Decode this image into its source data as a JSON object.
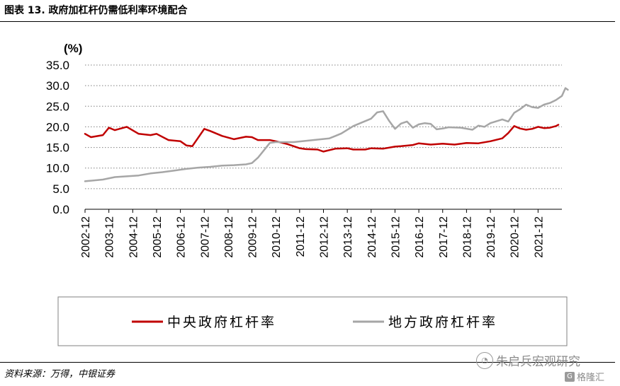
{
  "figure_title": "图表 13. 政府加杠杆仍需低利率环境配合",
  "source_note": "资料来源：万得，中银证券",
  "watermark": {
    "text": "朱启兵宏观研究",
    "icon": "wechat-circle-icon",
    "brand": "格隆汇",
    "brand_icon": "g-box-icon"
  },
  "chart_data": {
    "type": "line",
    "title": "",
    "ylabel": "(%)",
    "xlabel": "",
    "ylim": [
      0,
      35
    ],
    "yticks": [
      "0.0",
      "5.0",
      "10.0",
      "15.0",
      "20.0",
      "25.0",
      "30.0",
      "35.0"
    ],
    "xlim": [
      2002.75,
      2022.75
    ],
    "xticks": [
      "2002-12",
      "2003-12",
      "2004-12",
      "2005-12",
      "2006-12",
      "2007-12",
      "2008-12",
      "2009-12",
      "2010-12",
      "2011-12",
      "2012-12",
      "2013-12",
      "2014-12",
      "2015-12",
      "2016-12",
      "2017-12",
      "2018-12",
      "2019-12",
      "2020-12",
      "2021-12"
    ],
    "grid": "horizontal-dotted",
    "legend_position": "bottom",
    "series": [
      {
        "name": "中央政府杠杆率",
        "color": "#c00000",
        "points": [
          [
            2002.75,
            18.3
          ],
          [
            2003.0,
            17.5
          ],
          [
            2003.5,
            18.0
          ],
          [
            2003.75,
            19.8
          ],
          [
            2004.0,
            19.2
          ],
          [
            2004.5,
            20.0
          ],
          [
            2005.0,
            18.3
          ],
          [
            2005.5,
            18.0
          ],
          [
            2005.75,
            18.3
          ],
          [
            2006.25,
            16.8
          ],
          [
            2006.75,
            16.5
          ],
          [
            2007.0,
            15.5
          ],
          [
            2007.25,
            15.3
          ],
          [
            2007.75,
            19.5
          ],
          [
            2008.0,
            19.0
          ],
          [
            2008.5,
            17.8
          ],
          [
            2009.0,
            17.0
          ],
          [
            2009.5,
            17.6
          ],
          [
            2009.75,
            17.5
          ],
          [
            2010.0,
            16.8
          ],
          [
            2010.5,
            16.8
          ],
          [
            2010.75,
            16.5
          ],
          [
            2011.25,
            15.8
          ],
          [
            2011.75,
            14.8
          ],
          [
            2012.0,
            14.6
          ],
          [
            2012.5,
            14.5
          ],
          [
            2012.75,
            14.0
          ],
          [
            2013.25,
            14.7
          ],
          [
            2013.75,
            14.8
          ],
          [
            2014.0,
            14.5
          ],
          [
            2014.5,
            14.5
          ],
          [
            2014.75,
            14.8
          ],
          [
            2015.25,
            14.7
          ],
          [
            2015.75,
            15.2
          ],
          [
            2016.0,
            15.3
          ],
          [
            2016.5,
            15.6
          ],
          [
            2016.75,
            16.0
          ],
          [
            2017.25,
            15.7
          ],
          [
            2017.75,
            15.9
          ],
          [
            2018.25,
            15.7
          ],
          [
            2018.75,
            16.1
          ],
          [
            2019.25,
            16.0
          ],
          [
            2019.75,
            16.5
          ],
          [
            2020.25,
            17.2
          ],
          [
            2020.5,
            18.5
          ],
          [
            2020.75,
            20.2
          ],
          [
            2021.0,
            19.6
          ],
          [
            2021.25,
            19.3
          ],
          [
            2021.5,
            19.5
          ],
          [
            2021.75,
            20.0
          ],
          [
            2022.0,
            19.7
          ],
          [
            2022.25,
            19.8
          ],
          [
            2022.5,
            20.2
          ],
          [
            2022.6,
            20.5
          ]
        ]
      },
      {
        "name": "地方政府杠杆率",
        "color": "#a6a6a6",
        "points": [
          [
            2002.75,
            6.8
          ],
          [
            2003.5,
            7.2
          ],
          [
            2004.0,
            7.8
          ],
          [
            2004.5,
            8.0
          ],
          [
            2005.0,
            8.2
          ],
          [
            2005.5,
            8.7
          ],
          [
            2006.0,
            9.0
          ],
          [
            2006.5,
            9.4
          ],
          [
            2007.0,
            9.8
          ],
          [
            2007.5,
            10.1
          ],
          [
            2008.0,
            10.3
          ],
          [
            2008.5,
            10.6
          ],
          [
            2009.0,
            10.7
          ],
          [
            2009.5,
            10.9
          ],
          [
            2009.75,
            11.2
          ],
          [
            2010.0,
            12.5
          ],
          [
            2010.25,
            14.3
          ],
          [
            2010.5,
            16.1
          ],
          [
            2010.75,
            16.3
          ],
          [
            2011.0,
            16.3
          ],
          [
            2011.5,
            16.3
          ],
          [
            2012.0,
            16.6
          ],
          [
            2012.5,
            16.9
          ],
          [
            2013.0,
            17.2
          ],
          [
            2013.25,
            17.8
          ],
          [
            2013.5,
            18.4
          ],
          [
            2014.0,
            20.2
          ],
          [
            2014.25,
            20.8
          ],
          [
            2014.5,
            21.4
          ],
          [
            2014.75,
            22.0
          ],
          [
            2015.0,
            23.5
          ],
          [
            2015.25,
            23.8
          ],
          [
            2015.5,
            21.5
          ],
          [
            2015.75,
            19.5
          ],
          [
            2016.0,
            20.8
          ],
          [
            2016.25,
            21.3
          ],
          [
            2016.5,
            19.8
          ],
          [
            2016.75,
            20.6
          ],
          [
            2017.0,
            20.9
          ],
          [
            2017.25,
            20.7
          ],
          [
            2017.5,
            19.4
          ],
          [
            2017.75,
            19.6
          ],
          [
            2018.0,
            19.9
          ],
          [
            2018.5,
            19.8
          ],
          [
            2019.0,
            19.3
          ],
          [
            2019.25,
            20.3
          ],
          [
            2019.5,
            20.0
          ],
          [
            2019.75,
            20.9
          ],
          [
            2020.25,
            21.8
          ],
          [
            2020.5,
            21.3
          ],
          [
            2020.75,
            23.4
          ],
          [
            2021.0,
            24.3
          ],
          [
            2021.25,
            25.4
          ],
          [
            2021.5,
            24.8
          ],
          [
            2021.75,
            24.6
          ],
          [
            2022.0,
            25.4
          ],
          [
            2022.25,
            25.8
          ],
          [
            2022.5,
            26.5
          ],
          [
            2022.75,
            27.5
          ],
          [
            2022.9,
            29.4
          ],
          [
            2023.0,
            29.0
          ]
        ]
      }
    ]
  }
}
